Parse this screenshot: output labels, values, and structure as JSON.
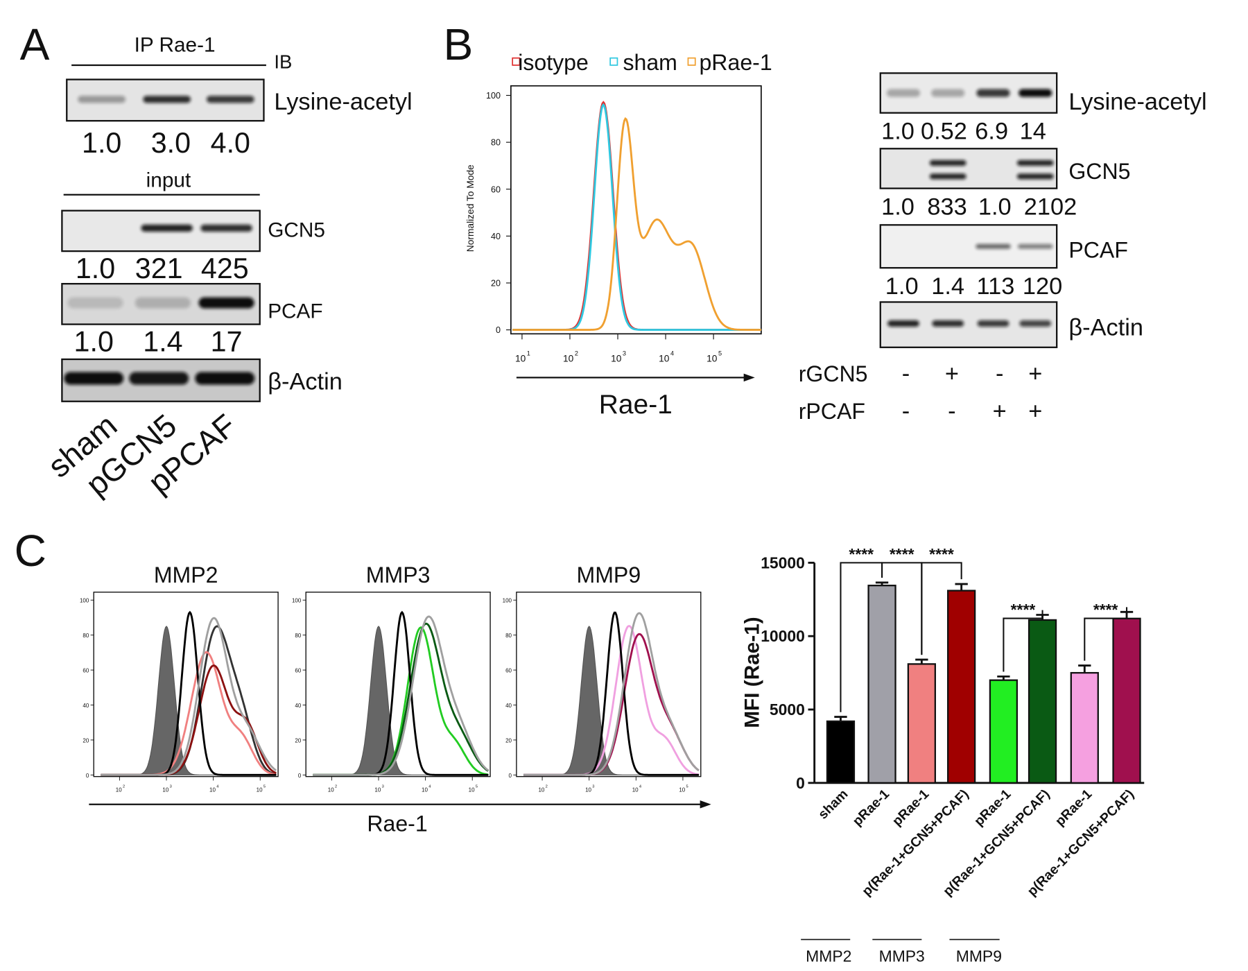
{
  "panel_a": {
    "label": "A",
    "ip_title": "IP Rae-1",
    "ib_label": "IB",
    "input_label": "input",
    "blots": [
      {
        "name": "Lysine-acetyl",
        "quant": [
          "1.0",
          "3.0",
          "4.0"
        ]
      },
      {
        "name": "GCN5",
        "quant": [
          "1.0",
          "321",
          "425"
        ]
      },
      {
        "name": "PCAF",
        "quant": [
          "1.0",
          "1.4",
          "17"
        ]
      },
      {
        "name": "β-Actin"
      }
    ],
    "lanes": [
      "sham",
      "pGCN5",
      "pPCAF"
    ]
  },
  "panel_b": {
    "label": "B",
    "legend": [
      "isotype",
      "sham",
      "pRae-1"
    ],
    "colors": [
      "#e03030",
      "#30c8e0",
      "#f0a030"
    ],
    "y_axis_label": "Normalized To Mode",
    "yticks": [
      100,
      80,
      60,
      40,
      20,
      0
    ],
    "xtick_base": 10,
    "xtick_exponents": [
      1,
      2,
      3,
      4,
      5
    ],
    "x_axis_label": "Rae-1",
    "blots": [
      {
        "name": "Lysine-acetyl",
        "quant": [
          "1.0",
          "0.52",
          "6.9",
          "14"
        ]
      },
      {
        "name": "GCN5",
        "quant": [
          "1.0",
          "833",
          "1.0",
          "2102"
        ]
      },
      {
        "name": "PCAF",
        "quant": [
          "1.0",
          "1.4",
          "113",
          "120"
        ]
      },
      {
        "name": "β-Actin"
      }
    ],
    "treatments": [
      {
        "name": "rGCN5",
        "signs": [
          "-",
          "+",
          "-",
          "+"
        ]
      },
      {
        "name": "rPCAF",
        "signs": [
          "-",
          "-",
          "+",
          "+"
        ]
      }
    ]
  },
  "panel_c": {
    "label": "C",
    "histograms": [
      "MMP2",
      "MMP3",
      "MMP9"
    ],
    "yticks": [
      100,
      80,
      60,
      40,
      20,
      0
    ],
    "xtick_base": 10,
    "xtick_exponents": [
      2,
      3,
      4,
      5
    ],
    "x_axis_label": "Rae-1"
  },
  "chart_data": {
    "type": "bar",
    "ylabel": "MFI (Rae-1)",
    "categories": [
      "sham",
      "pRae-1",
      "pRae-1",
      "p(Rae-1+GCN5+PCAF)",
      "pRae-1",
      "p(Rae-1+GCN5+PCAF)",
      "pRae-1",
      "p(Rae-1+GCN5+PCAF)"
    ],
    "values": [
      4200,
      13450,
      8100,
      13100,
      7000,
      11100,
      7500,
      11200
    ],
    "errors": [
      300,
      200,
      300,
      450,
      250,
      350,
      500,
      450
    ],
    "colors": [
      "#000000",
      "#a0a0a8",
      "#f08080",
      "#a00000",
      "#22ee22",
      "#0a5a14",
      "#f5a0e0",
      "#a0104e"
    ],
    "ylim": [
      0,
      15000
    ],
    "yticks": [
      0,
      5000,
      10000,
      15000
    ],
    "annotations": [
      "****",
      "****",
      "****",
      "****",
      "****"
    ],
    "groups": [
      "MMP2",
      "MMP3",
      "MMP9"
    ]
  }
}
